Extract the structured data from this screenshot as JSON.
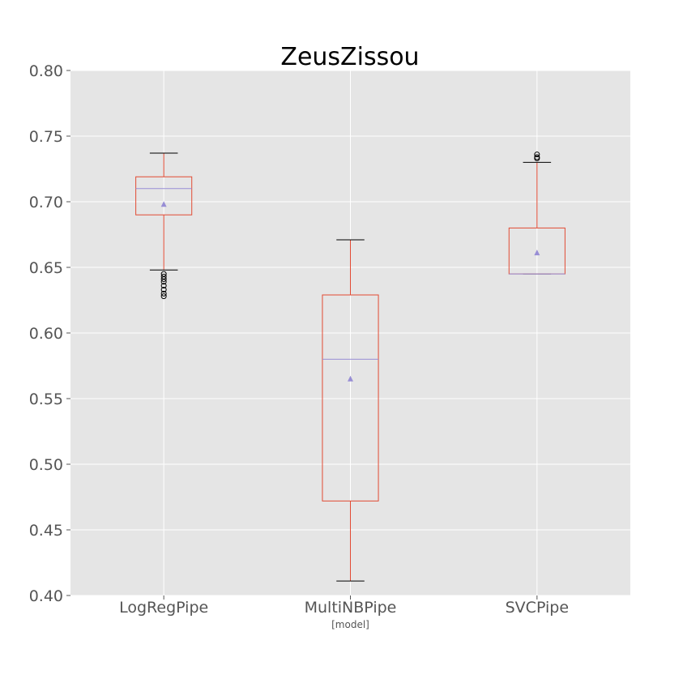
{
  "chart_data": {
    "type": "box",
    "title": "ZeusZissou",
    "xlabel": "[model]",
    "ylabel": "",
    "ylim": [
      0.4,
      0.8
    ],
    "yticks": [
      "0.40",
      "0.45",
      "0.50",
      "0.55",
      "0.60",
      "0.65",
      "0.70",
      "0.75",
      "0.80"
    ],
    "grid": true,
    "colors": {
      "plot_bg": "#e5e5e5",
      "grid": "#ffffff",
      "box": "#e24a33",
      "median": "#988ed5",
      "mean_marker": "#988ed5",
      "whisker_cap": "#000000",
      "flier": "#000000",
      "tick_label": "#555555"
    },
    "categories": [
      "LogRegPipe",
      "MultiNBPipe",
      "SVCPipe"
    ],
    "boxes": [
      {
        "name": "LogRegPipe",
        "whisker_low": 0.648,
        "q1": 0.69,
        "median": 0.71,
        "q3": 0.719,
        "whisker_high": 0.737,
        "mean": 0.698,
        "fliers": [
          0.628,
          0.63,
          0.633,
          0.636,
          0.639,
          0.641,
          0.643,
          0.645
        ]
      },
      {
        "name": "MultiNBPipe",
        "whisker_low": 0.411,
        "q1": 0.472,
        "median": 0.58,
        "q3": 0.629,
        "whisker_high": 0.671,
        "mean": 0.565,
        "fliers": []
      },
      {
        "name": "SVCPipe",
        "whisker_low": 0.645,
        "q1": 0.645,
        "median": 0.645,
        "q3": 0.68,
        "whisker_high": 0.73,
        "mean": 0.661,
        "fliers": [
          0.733,
          0.734,
          0.736
        ]
      }
    ]
  }
}
